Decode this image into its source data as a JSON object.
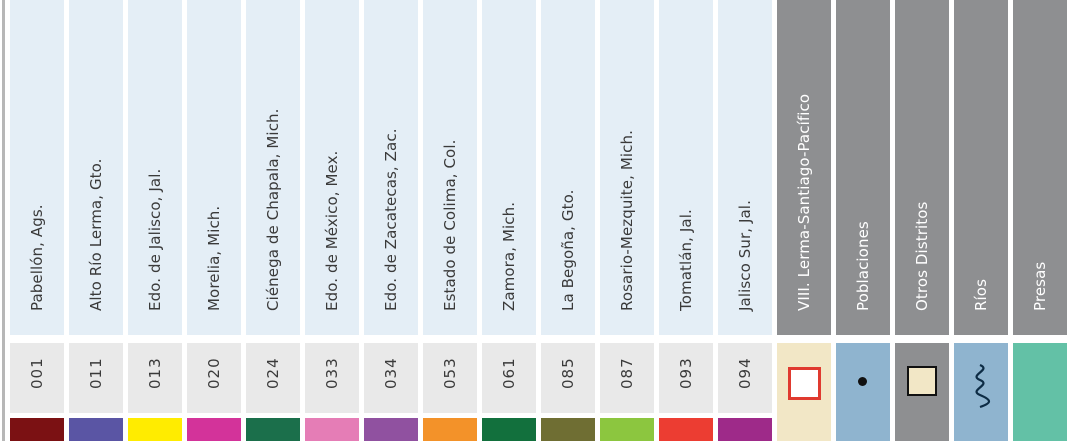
{
  "districts": [
    {
      "name": "Pabellón, Ags.",
      "code": "001",
      "color": "#7b1113"
    },
    {
      "name": "Alto Río Lerma, Gto.",
      "code": "011",
      "color": "#5a55a4"
    },
    {
      "name": "Edo. de Jalisco, Jal.",
      "code": "013",
      "color": "#ffec00"
    },
    {
      "name": "Morelia, Mich.",
      "code": "020",
      "color": "#d3339a"
    },
    {
      "name": "Ciénega de Chapala, Mich.",
      "code": "024",
      "color": "#1b6f4b"
    },
    {
      "name": "Edo. de México, Mex.",
      "code": "033",
      "color": "#e57db6"
    },
    {
      "name": "Edo. de Zacatecas, Zac.",
      "code": "034",
      "color": "#9051a0"
    },
    {
      "name": "Estado de Colima, Col.",
      "code": "053",
      "color": "#f39229"
    },
    {
      "name": "Zamora, Mich.",
      "code": "061",
      "color": "#12703d"
    },
    {
      "name": "La Begoña, Gto.",
      "code": "085",
      "color": "#6f6e33"
    },
    {
      "name": "Rosario-Mezquite, Mich.",
      "code": "087",
      "color": "#8cc63f"
    },
    {
      "name": "Tomatlán, Jal.",
      "code": "093",
      "color": "#ec3d32"
    },
    {
      "name": "Jalisco Sur, Jal.",
      "code": "094",
      "color": "#9e2a89"
    }
  ],
  "layers": [
    {
      "name": "VIII. Lerma-Santiago-Pacífico",
      "symbol": "region-outline-icon",
      "symbol_bg": "#f2e7c6"
    },
    {
      "name": "Poblaciones",
      "symbol": "town-dot-icon",
      "symbol_bg": "#8fb4cf"
    },
    {
      "name": "Otros Distritos",
      "symbol": "district-square-icon",
      "symbol_bg": "#8e8f91"
    },
    {
      "name": "Ríos",
      "symbol": "river-wave-icon",
      "symbol_bg": "#8fb4cf"
    },
    {
      "name": "Presas",
      "symbol": "dam-fill-icon",
      "symbol_bg": "#63c1a6"
    }
  ]
}
